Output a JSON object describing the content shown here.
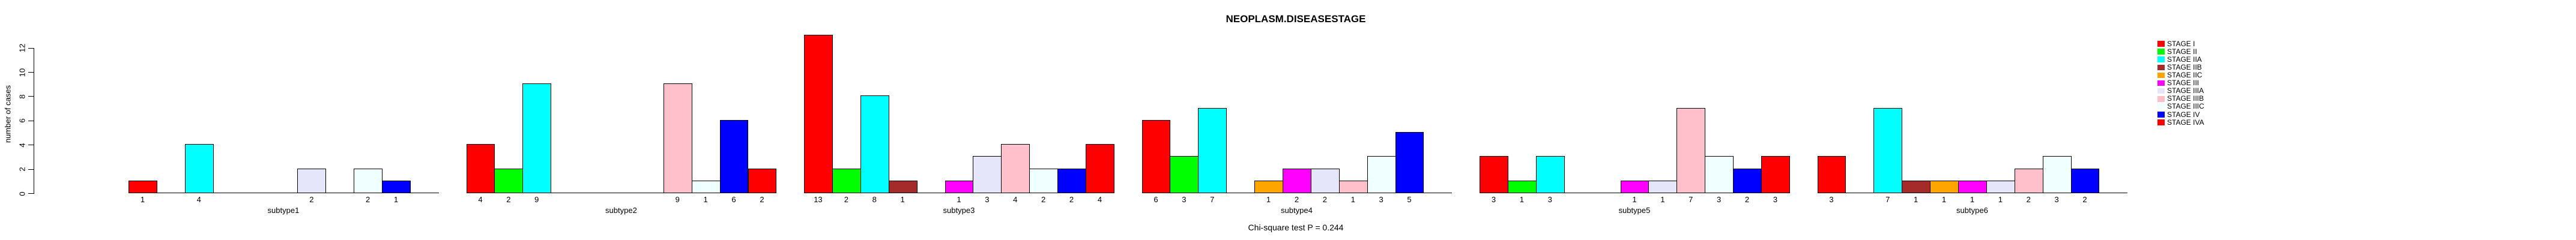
{
  "title": "NEOPLASM.DISEASESTAGE",
  "footer_note": "Chi-square test P = 0.244",
  "y_axis": {
    "label": "number of cases"
  },
  "chart_data": {
    "type": "bar",
    "title": "NEOPLASM.DISEASESTAGE",
    "xlabel": "",
    "ylabel": "number of cases",
    "ylim": [
      0,
      12
    ],
    "yticks": [
      0,
      2,
      4,
      6,
      8,
      10,
      12
    ],
    "grid": false,
    "legend_position": "right",
    "bar_value_labels": "counts shown under each nonzero bar",
    "annotation": "Chi-square test P = 0.244",
    "categories": [
      "subtype1",
      "subtype2",
      "subtype3",
      "subtype4",
      "subtype5",
      "subtype6"
    ],
    "series": [
      {
        "name": "STAGE I",
        "color": "#FF0000",
        "values": [
          1,
          4,
          13,
          6,
          3,
          3
        ]
      },
      {
        "name": "STAGE II",
        "color": "#00FF00",
        "values": [
          0,
          2,
          2,
          3,
          1,
          0
        ]
      },
      {
        "name": "STAGE IIA",
        "color": "#00FFFF",
        "values": [
          4,
          9,
          8,
          7,
          3,
          7
        ]
      },
      {
        "name": "STAGE IIB",
        "color": "#A52A2A",
        "values": [
          0,
          0,
          1,
          0,
          0,
          1
        ]
      },
      {
        "name": "STAGE IIC",
        "color": "#FFA500",
        "values": [
          0,
          0,
          0,
          1,
          0,
          1
        ]
      },
      {
        "name": "STAGE III",
        "color": "#FF00FF",
        "values": [
          0,
          0,
          1,
          2,
          1,
          1
        ]
      },
      {
        "name": "STAGE IIIA",
        "color": "#E6E6FA",
        "values": [
          2,
          0,
          3,
          2,
          1,
          1
        ]
      },
      {
        "name": "STAGE IIIB",
        "color": "#FFC0CB",
        "values": [
          0,
          9,
          4,
          1,
          7,
          2
        ]
      },
      {
        "name": "STAGE IIIC",
        "color": "#F0FFFF",
        "values": [
          2,
          1,
          2,
          3,
          3,
          3
        ]
      },
      {
        "name": "STAGE IV",
        "color": "#0000FF",
        "values": [
          1,
          6,
          2,
          5,
          2,
          2
        ]
      },
      {
        "name": "STAGE IVA",
        "color": "#FF0000",
        "values": [
          0,
          2,
          4,
          0,
          3,
          0
        ]
      }
    ]
  }
}
